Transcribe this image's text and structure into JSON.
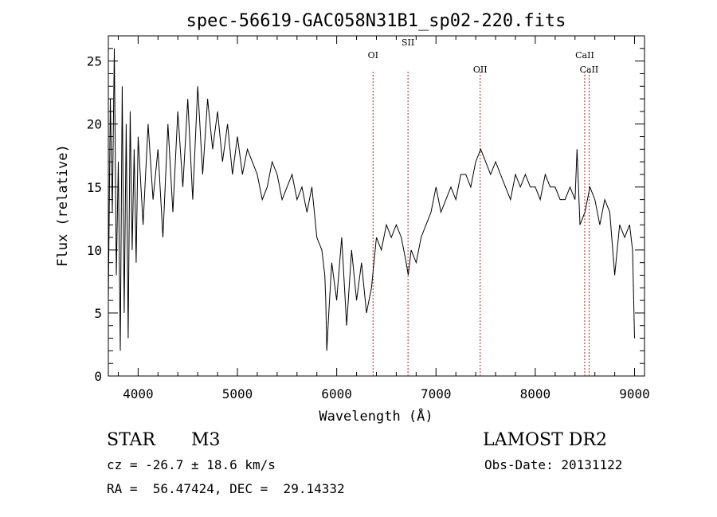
{
  "chart_data": {
    "type": "line",
    "title": "spec-56619-GAC058N31B1_sp02-220.fits",
    "xlabel": "Wavelength (Å)",
    "ylabel": "Flux (relative)",
    "xlim": [
      3700,
      9100
    ],
    "ylim": [
      0,
      27
    ],
    "xticks": [
      4000,
      5000,
      6000,
      7000,
      8000,
      9000
    ],
    "yticks": [
      0,
      5,
      10,
      15,
      20,
      25
    ],
    "line_color": "#000000",
    "marker_color": "#b22222",
    "series": [
      {
        "x": [
          3700,
          3720,
          3740,
          3760,
          3780,
          3800,
          3820,
          3840,
          3860,
          3880,
          3900,
          3920,
          3940,
          3960,
          3980,
          4000,
          4050,
          4100,
          4150,
          4200,
          4250,
          4300,
          4350,
          4400,
          4450,
          4500,
          4550,
          4600,
          4650,
          4700,
          4750,
          4800,
          4850,
          4900,
          4950,
          5000,
          5050,
          5100,
          5150,
          5200,
          5250,
          5300,
          5350,
          5400,
          5450,
          5500,
          5550,
          5600,
          5650,
          5700,
          5750,
          5800,
          5850,
          5880,
          5890,
          5900,
          5920,
          5950,
          6000,
          6050,
          6100,
          6150,
          6200,
          6250,
          6300,
          6350,
          6400,
          6450,
          6500,
          6550,
          6600,
          6650,
          6700,
          6720,
          6750,
          6800,
          6850,
          6900,
          6950,
          7000,
          7050,
          7100,
          7150,
          7200,
          7250,
          7300,
          7350,
          7400,
          7450,
          7500,
          7550,
          7600,
          7650,
          7700,
          7750,
          7800,
          7850,
          7900,
          7950,
          8000,
          8050,
          8100,
          8150,
          8200,
          8250,
          8300,
          8350,
          8400,
          8420,
          8450,
          8500,
          8550,
          8600,
          8650,
          8700,
          8750,
          8800,
          8850,
          8900,
          8950,
          8980,
          9000
        ],
        "y": [
          6,
          22,
          13,
          26,
          8,
          17,
          2,
          23,
          5,
          20,
          3,
          21,
          10,
          18,
          9,
          19,
          12,
          20,
          14,
          18,
          11,
          20,
          13,
          21,
          15,
          22,
          14,
          23,
          16,
          22,
          18,
          21,
          17,
          20,
          16,
          19,
          16,
          18,
          17,
          16,
          14,
          15,
          17,
          16,
          14,
          15,
          16,
          14,
          15,
          13,
          15,
          11,
          10,
          8,
          6,
          2,
          5,
          9,
          6,
          11,
          4,
          10,
          6,
          9,
          5,
          7,
          11,
          10,
          12,
          11,
          12,
          11,
          9,
          8,
          10,
          9,
          11,
          12,
          13,
          15,
          13,
          14,
          15,
          14,
          16,
          16,
          15,
          17,
          18,
          17,
          16,
          17,
          16,
          15,
          14,
          16,
          15,
          16,
          15,
          15,
          14,
          16,
          15,
          15,
          14,
          14,
          15,
          14,
          18,
          12,
          13,
          15,
          14,
          12,
          14,
          13,
          8,
          12,
          11,
          12,
          10,
          3
        ]
      }
    ],
    "markers": [
      {
        "label": "OI",
        "x": 6366
      },
      {
        "label": "SII",
        "x": 6718
      },
      {
        "label": "OII",
        "x": 7445
      },
      {
        "label": "CaII",
        "x": 8498
      },
      {
        "label": "CaII",
        "x": 8542
      }
    ]
  },
  "info": {
    "class": "STAR",
    "subclass": "M3",
    "survey": "LAMOST DR2",
    "cz": "cz = -26.7 ± 18.6 km/s",
    "obs_date": "Obs-Date: 20131122",
    "radec": "RA =  56.47424, DEC =  29.14332"
  }
}
